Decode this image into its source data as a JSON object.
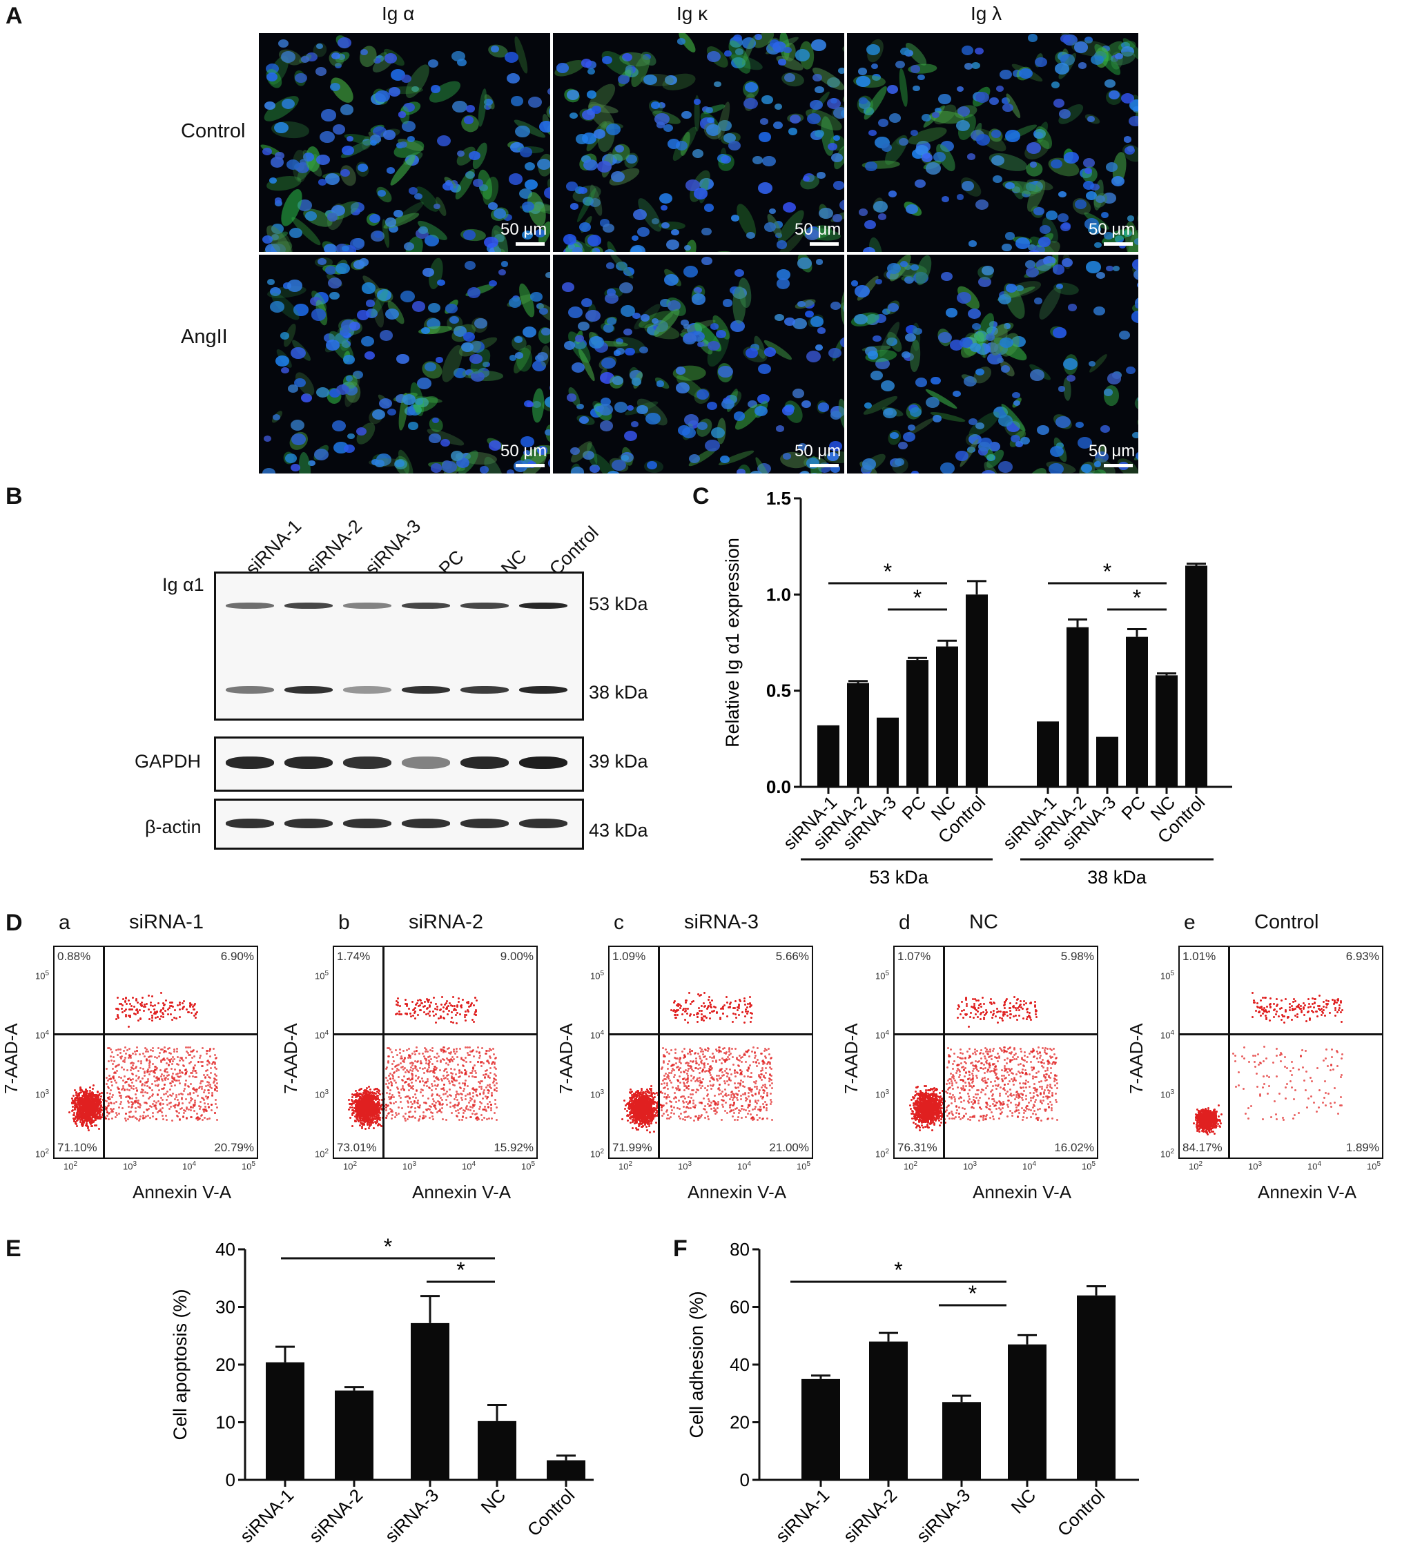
{
  "panels": {
    "A": "A",
    "B": "B",
    "C": "C",
    "D": "D",
    "E": "E",
    "F": "F"
  },
  "panel_a": {
    "columns": [
      "Ig α",
      "Ig κ",
      "Ig λ"
    ],
    "rows": [
      "Control",
      "AngII"
    ],
    "scale": "50 μm"
  },
  "panel_b": {
    "lanes": [
      "siRNA-1",
      "siRNA-2",
      "siRNA-3",
      "PC",
      "NC",
      "Control"
    ],
    "blot_main_label": "Ig α1",
    "main_sizes": [
      "53 kDa",
      "38 kDa"
    ],
    "gapdh_label": "GAPDH",
    "gapdh_size": "39 kDa",
    "actin_label": "β-actin",
    "actin_size": "43 kDa",
    "band_intensity_53": [
      0.55,
      0.75,
      0.45,
      0.75,
      0.75,
      0.9
    ],
    "band_intensity_38": [
      0.5,
      0.85,
      0.35,
      0.85,
      0.8,
      0.9
    ],
    "band_intensity_gapdh": [
      0.9,
      0.9,
      0.85,
      0.45,
      0.9,
      0.95
    ],
    "band_intensity_actin": [
      0.85,
      0.85,
      0.85,
      0.85,
      0.85,
      0.85
    ]
  },
  "panel_d": {
    "plots": [
      {
        "letter": "a",
        "title": "siRNA-1",
        "ul": "0.88%",
        "ur": "6.90%",
        "ll": "71.10%",
        "lr": "20.79%"
      },
      {
        "letter": "b",
        "title": "siRNA-2",
        "ul": "1.74%",
        "ur": "9.00%",
        "ll": "73.01%",
        "lr": "15.92%"
      },
      {
        "letter": "c",
        "title": "siRNA-3",
        "ul": "1.09%",
        "ur": "5.66%",
        "ll": "71.99%",
        "lr": "21.00%"
      },
      {
        "letter": "d",
        "title": "NC",
        "ul": "1.07%",
        "ur": "5.98%",
        "ll": "76.31%",
        "lr": "16.02%"
      },
      {
        "letter": "e",
        "title": "Control",
        "ul": "1.01%",
        "ur": "6.93%",
        "ll": "84.17%",
        "lr": "1.89%"
      }
    ],
    "xlabel": "Annexin V-A",
    "ylabel": "7-AAD-A",
    "ticks": [
      "10",
      "10",
      "10",
      "10"
    ],
    "exponents": [
      "2",
      "3",
      "4",
      "5"
    ]
  },
  "chart_data": [
    {
      "panel": "C",
      "type": "bar",
      "ylabel": "Relative Ig α1 expression",
      "ylim": [
        0,
        1.5
      ],
      "yticks": [
        "0.0",
        "0.5",
        "1.0",
        "1.5"
      ],
      "groups": [
        {
          "name": "53 kDa",
          "categories": [
            "siRNA-1",
            "siRNA-2",
            "siRNA-3",
            "PC",
            "NC",
            "Control"
          ],
          "values": [
            0.32,
            0.54,
            0.36,
            0.66,
            0.73,
            1.0
          ],
          "errors": [
            0.0,
            0.01,
            0.0,
            0.01,
            0.03,
            0.07
          ]
        },
        {
          "name": "38 kDa",
          "categories": [
            "siRNA-1",
            "siRNA-2",
            "siRNA-3",
            "PC",
            "NC",
            "Control"
          ],
          "values": [
            0.34,
            0.83,
            0.26,
            0.78,
            0.58,
            1.15
          ],
          "errors": [
            0.0,
            0.04,
            0.0,
            0.04,
            0.01,
            0.01
          ]
        }
      ],
      "significance": "*"
    },
    {
      "panel": "E",
      "type": "bar",
      "ylabel": "Cell apoptosis (%)",
      "ylim": [
        0,
        40
      ],
      "yticks": [
        "0",
        "10",
        "20",
        "30",
        "40"
      ],
      "categories": [
        "siRNA-1",
        "siRNA-2",
        "siRNA-3",
        "NC",
        "Control"
      ],
      "values": [
        20.4,
        15.5,
        27.2,
        10.2,
        3.4
      ],
      "errors": [
        2.7,
        0.6,
        4.7,
        2.8,
        0.8
      ],
      "significance": "*"
    },
    {
      "panel": "F",
      "type": "bar",
      "ylabel": "Cell adhesion (%)",
      "ylim": [
        0,
        80
      ],
      "yticks": [
        "0",
        "20",
        "40",
        "60",
        "80"
      ],
      "categories": [
        "siRNA-1",
        "siRNA-2",
        "siRNA-3",
        "NC",
        "Control"
      ],
      "values": [
        35,
        48,
        27,
        47,
        64
      ],
      "errors": [
        1.2,
        3.0,
        2.2,
        3.2,
        3.2
      ],
      "significance": "*"
    }
  ]
}
